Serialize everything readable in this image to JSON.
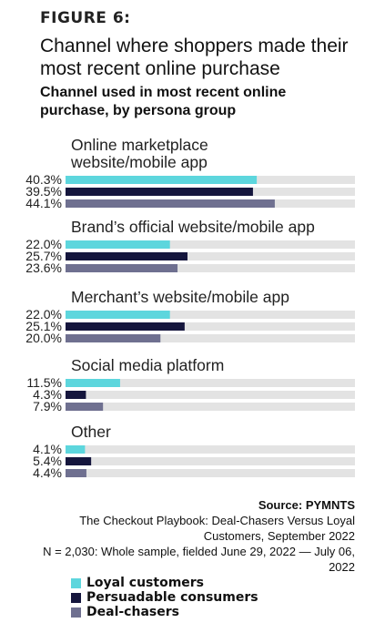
{
  "figure_label": "FIGURE 6:",
  "title": "Channel where shoppers made their most recent online purchase",
  "subtitle": "Channel used in most recent online purchase, by persona group",
  "colors": {
    "loyal": "#5dd6dd",
    "persuadable": "#15163d",
    "deal": "#6f7090",
    "track": "#e3e3e3"
  },
  "chart_data": {
    "type": "bar",
    "orientation": "horizontal",
    "title": "Channel used in most recent online purchase, by persona group",
    "xlim": [
      0,
      100
    ],
    "categories": [
      "Online marketplace website/mobile app",
      "Brand’s official website/mobile app",
      "Merchant’s website/mobile app",
      "Social media platform",
      "Other"
    ],
    "value_labels": [
      [
        "40.3%",
        "39.5%",
        "44.1%"
      ],
      [
        "22.0%",
        "25.7%",
        "23.6%"
      ],
      [
        "22.0%",
        "25.1%",
        "20.0%"
      ],
      [
        "11.5%",
        "4.3%",
        "7.9%"
      ],
      [
        "4.1%",
        "5.4%",
        "4.4%"
      ]
    ],
    "series": [
      {
        "name": "Loyal customers",
        "values": [
          40.3,
          22.0,
          22.0,
          11.5,
          4.1
        ]
      },
      {
        "name": "Persuadable consumers",
        "values": [
          39.5,
          25.7,
          25.1,
          4.3,
          5.4
        ]
      },
      {
        "name": "Deal-chasers",
        "values": [
          44.1,
          23.6,
          20.0,
          7.9,
          4.4
        ]
      }
    ],
    "legend_position": "bottom-left"
  },
  "source": {
    "head": "Source: PYMNTS",
    "line1": "The Checkout Playbook: Deal-Chasers Versus Loyal Customers, September 2022",
    "line2": "N = 2,030: Whole sample, fielded June 29, 2022 — July 06, 2022"
  },
  "legend": {
    "items": [
      "Loyal customers",
      "Persuadable consumers",
      "Deal-chasers"
    ]
  }
}
